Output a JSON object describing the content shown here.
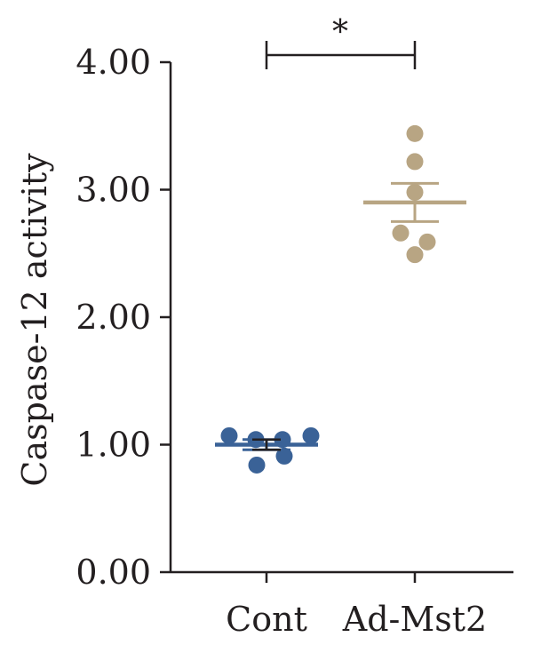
{
  "chart_data": {
    "type": "scatter",
    "ylabel": "Caspase-12 activity",
    "ylim": [
      0,
      4
    ],
    "yticks": [
      "0.00",
      "1.00",
      "2.00",
      "3.00",
      "4.00"
    ],
    "categories": [
      "Cont",
      "Ad-Mst2"
    ],
    "grid": false,
    "series": [
      {
        "category": "Cont",
        "color": "#3a6297",
        "points": [
          1.07,
          1.04,
          1.04,
          1.07,
          0.84,
          0.91
        ],
        "mean": 1.0,
        "sem": 0.04
      },
      {
        "category": "Ad-Mst2",
        "color": "#b8a583",
        "points": [
          3.44,
          3.22,
          2.98,
          2.66,
          2.59,
          2.49
        ],
        "mean": 2.9,
        "sem": 0.15
      }
    ],
    "significance": {
      "label": "*",
      "between": [
        "Cont",
        "Ad-Mst2"
      ]
    }
  }
}
